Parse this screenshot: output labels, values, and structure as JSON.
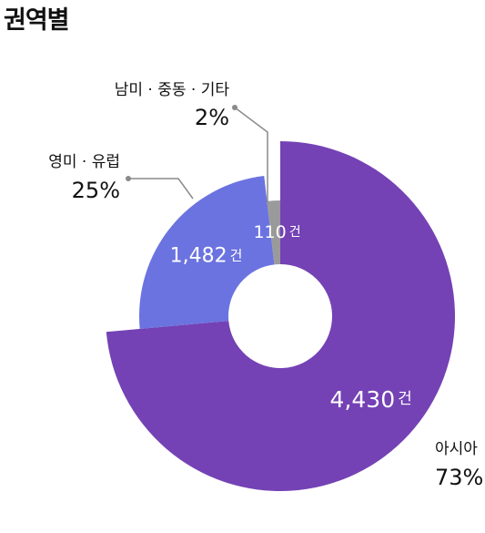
{
  "chart_data": {
    "type": "pie",
    "title": "권역별",
    "unit": "건",
    "slices": [
      {
        "name": "아시아",
        "value": 4430,
        "value_label": "4,430",
        "percent_label": "73%",
        "color": "#7442b5"
      },
      {
        "name": "영미 · 유럽",
        "value": 1482,
        "value_label": "1,482",
        "percent_label": "25%",
        "color": "#6b73e0"
      },
      {
        "name": "남미 · 중동 · 기타",
        "value": 110,
        "value_label": "110",
        "percent_label": "2%",
        "color": "#9a9a9a"
      }
    ],
    "leader_color": "#8a8a8a"
  }
}
